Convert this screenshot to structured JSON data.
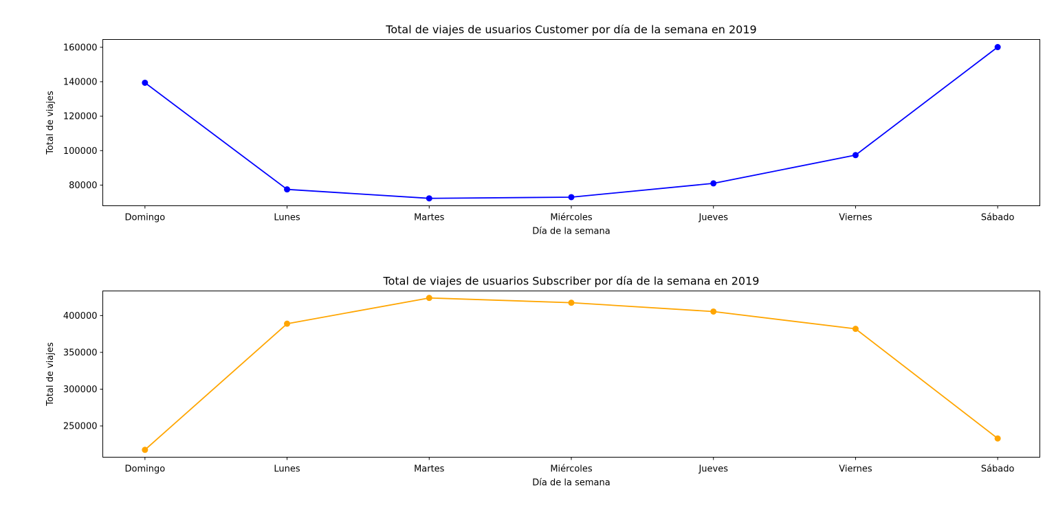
{
  "chart_data": [
    {
      "type": "line",
      "title": "Total de viajes de usuarios Customer por día de la semana en 2019",
      "xlabel": "Día de la semana",
      "ylabel": "Total de viajes",
      "categories": [
        "Domingo",
        "Lunes",
        "Martes",
        "Miércoles",
        "Jueves",
        "Viernes",
        "Sábado"
      ],
      "yticks": [
        80000,
        100000,
        120000,
        140000,
        160000
      ],
      "ylim": [
        68000,
        164500
      ],
      "grid": false,
      "legend": false,
      "series": [
        {
          "color": "#0000ff",
          "marker": "circle",
          "values": [
            139400,
            77500,
            72300,
            73000,
            81000,
            97400,
            160100
          ]
        }
      ]
    },
    {
      "type": "line",
      "title": "Total de viajes de usuarios Subscriber por día de la semana en 2019",
      "xlabel": "Día de la semana",
      "ylabel": "Total de viajes",
      "categories": [
        "Domingo",
        "Lunes",
        "Martes",
        "Miércoles",
        "Jueves",
        "Viernes",
        "Sábado"
      ],
      "yticks": [
        250000,
        300000,
        350000,
        400000
      ],
      "ylim": [
        207500,
        433500
      ],
      "grid": false,
      "legend": false,
      "series": [
        {
          "color": "#ffa500",
          "marker": "circle",
          "values": [
            217500,
            389000,
            424000,
            417500,
            405500,
            382000,
            233000
          ]
        }
      ]
    }
  ]
}
